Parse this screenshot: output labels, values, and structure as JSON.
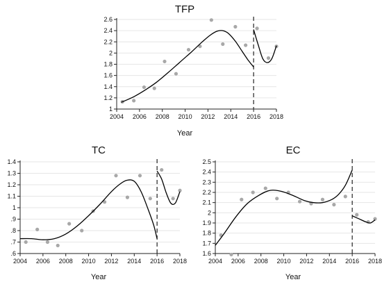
{
  "chart_data": [
    {
      "type": "scatter",
      "title": "TFP",
      "xlabel": "Year",
      "ylabel": "",
      "xlim": [
        2004,
        2018
      ],
      "ylim": [
        1,
        2.6
      ],
      "x_ticks": [
        2004,
        2006,
        2008,
        2010,
        2012,
        2014,
        2016,
        2018
      ],
      "y_ticks": [
        1,
        1.2,
        1.4,
        1.6,
        1.8,
        2,
        2.2,
        2.4,
        2.6
      ],
      "y_tick_labels": [
        "1",
        "1.2",
        "1.4",
        "1.6",
        "1.8",
        "2",
        "2.2",
        "2.4",
        "2.6"
      ],
      "grid": true,
      "break_year": 2016,
      "series": [
        {
          "kind": "points",
          "marker_color": "#a8a8a8",
          "x": [
            2004.5,
            2005.5,
            2006.4,
            2007.3,
            2008.2,
            2009.2,
            2010.3,
            2011.3,
            2012.3,
            2013.3,
            2014.4,
            2015.3,
            2016.3,
            2017.3,
            2018
          ],
          "y": [
            1.13,
            1.15,
            1.39,
            1.37,
            1.85,
            1.63,
            2.06,
            2.12,
            2.59,
            2.16,
            2.47,
            2.14,
            2.44,
            1.91,
            2.12
          ]
        },
        {
          "kind": "fit",
          "line_color": "#000000",
          "x": [
            2004.4,
            2005.5,
            2006.5,
            2007.5,
            2008.5,
            2009.5,
            2010.5,
            2011.5,
            2012.2,
            2012.8,
            2013.3,
            2013.8,
            2014.4,
            2015.0,
            2015.5,
            2016.0
          ],
          "y": [
            1.12,
            1.22,
            1.34,
            1.48,
            1.65,
            1.83,
            2.01,
            2.2,
            2.32,
            2.39,
            2.4,
            2.35,
            2.21,
            2.03,
            1.88,
            1.75
          ]
        },
        {
          "kind": "fit",
          "line_color": "#000000",
          "x": [
            2016.0,
            2016.4,
            2016.8,
            2017.2,
            2017.6,
            2018.0
          ],
          "y": [
            2.42,
            2.15,
            1.9,
            1.83,
            1.9,
            2.13
          ]
        }
      ]
    },
    {
      "type": "scatter",
      "title": "TC",
      "xlabel": "Year",
      "ylabel": "",
      "xlim": [
        2004,
        2018
      ],
      "ylim": [
        0.6,
        1.4
      ],
      "x_ticks": [
        2004,
        2006,
        2008,
        2010,
        2012,
        2014,
        2016,
        2018
      ],
      "y_ticks": [
        0.6,
        0.7,
        0.8,
        0.9,
        1.0,
        1.1,
        1.2,
        1.3,
        1.4
      ],
      "y_tick_labels": [
        ".6",
        ".7",
        ".8",
        ".9",
        "1",
        "1.1",
        "1.2",
        "1.3",
        "1.4"
      ],
      "grid": true,
      "break_year": 2016,
      "series": [
        {
          "kind": "points",
          "marker_color": "#a8a8a8",
          "x": [
            2004.5,
            2005.5,
            2006.4,
            2007.3,
            2008.3,
            2009.4,
            2010.4,
            2011.4,
            2012.4,
            2013.4,
            2014.5,
            2015.4,
            2016.4,
            2017.4,
            2018
          ],
          "y": [
            0.7,
            0.81,
            0.7,
            0.67,
            0.86,
            0.8,
            0.97,
            1.05,
            1.28,
            1.09,
            1.28,
            1.08,
            1.33,
            1.08,
            1.15
          ]
        },
        {
          "kind": "fit",
          "line_color": "#000000",
          "x": [
            2004.0,
            2005.0,
            2006.0,
            2007.0,
            2008.0,
            2009.0,
            2010.0,
            2011.0,
            2012.0,
            2012.8,
            2013.4,
            2014.0,
            2014.6,
            2015.2,
            2015.7,
            2016.0
          ],
          "y": [
            0.73,
            0.73,
            0.72,
            0.73,
            0.77,
            0.84,
            0.93,
            1.03,
            1.14,
            1.21,
            1.24,
            1.23,
            1.14,
            0.99,
            0.85,
            0.73
          ]
        },
        {
          "kind": "fit",
          "line_color": "#000000",
          "x": [
            2016.0,
            2016.4,
            2016.8,
            2017.2,
            2017.6,
            2018.0
          ],
          "y": [
            1.32,
            1.25,
            1.13,
            1.04,
            1.04,
            1.14
          ]
        }
      ]
    },
    {
      "type": "scatter",
      "title": "EC",
      "xlabel": "Year",
      "ylabel": "",
      "xlim": [
        2004,
        2018
      ],
      "ylim": [
        1.6,
        2.5
      ],
      "x_ticks": [
        2004,
        2006,
        2008,
        2010,
        2012,
        2014,
        2016,
        2018
      ],
      "y_ticks": [
        1.6,
        1.7,
        1.8,
        1.9,
        2.0,
        2.1,
        2.2,
        2.3,
        2.4,
        2.5
      ],
      "y_tick_labels": [
        "1.6",
        "1.7",
        "1.8",
        "1.9",
        "2",
        "2.1",
        "2.2",
        "2.3",
        "2.4",
        "2.5"
      ],
      "grid": true,
      "break_year": 2016,
      "series": [
        {
          "kind": "points",
          "marker_color": "#a8a8a8",
          "x": [
            2004.5,
            2005.4,
            2006.3,
            2007.3,
            2008.4,
            2009.4,
            2010.4,
            2011.4,
            2012.4,
            2013.4,
            2014.4,
            2015.4,
            2016.4,
            2017.4,
            2018
          ],
          "y": [
            1.78,
            1.59,
            2.13,
            2.2,
            2.24,
            2.14,
            2.2,
            2.11,
            2.09,
            2.13,
            2.08,
            2.16,
            1.98,
            1.91,
            1.94
          ]
        },
        {
          "kind": "fit",
          "line_color": "#000000",
          "x": [
            2004.0,
            2004.8,
            2005.8,
            2006.8,
            2007.8,
            2008.8,
            2009.8,
            2010.8,
            2011.8,
            2012.6,
            2013.4,
            2014.2,
            2014.8,
            2015.4,
            2016.0
          ],
          "y": [
            1.68,
            1.8,
            1.96,
            2.09,
            2.17,
            2.22,
            2.21,
            2.17,
            2.12,
            2.1,
            2.1,
            2.13,
            2.18,
            2.27,
            2.42
          ]
        },
        {
          "kind": "fit",
          "line_color": "#000000",
          "x": [
            2016.0,
            2016.4,
            2016.8,
            2017.2,
            2017.6,
            2018.0
          ],
          "y": [
            1.97,
            1.95,
            1.93,
            1.91,
            1.9,
            1.93
          ]
        }
      ]
    }
  ]
}
